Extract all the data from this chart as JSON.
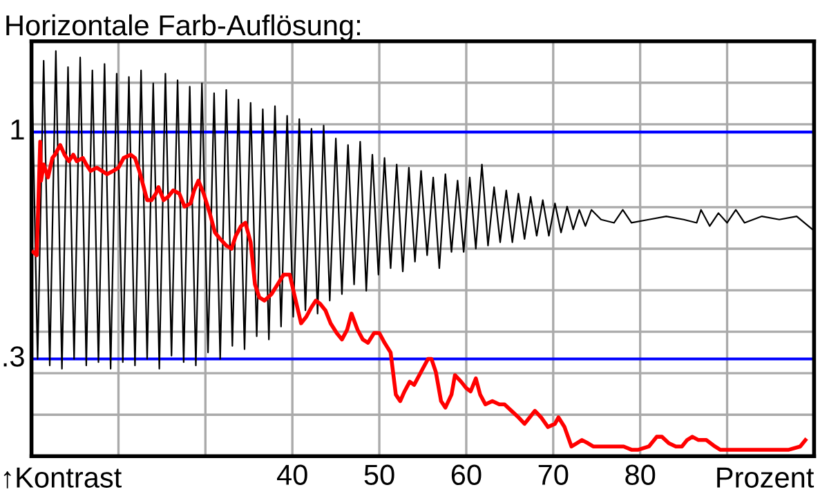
{
  "chart_data": {
    "type": "line",
    "title": "Horizontale Farb-Auflösung:",
    "xlabel": "Prozent",
    "annotations": [
      "↑Kontrast"
    ],
    "xlim": [
      10,
      100
    ],
    "xticks": [
      {
        "value": 20,
        "label": null
      },
      {
        "value": 30,
        "label": null
      },
      40,
      50,
      60,
      70,
      80,
      {
        "value": 90,
        "label": null
      }
    ],
    "ylim": [
      0,
      1.28
    ],
    "yticks": [
      {
        "value": 0.128,
        "label": null
      },
      {
        "value": 0.256,
        "label": null
      },
      {
        "value": 0.384,
        "label": null
      },
      {
        "value": 0.512,
        "label": null
      },
      {
        "value": 0.64,
        "label": null
      },
      {
        "value": 0.768,
        "label": null
      },
      {
        "value": 0.896,
        "label": null
      },
      {
        "value": 1.024,
        "label": null
      },
      {
        "value": 1.152,
        "label": null
      }
    ],
    "grid": true,
    "legend": false,
    "line_style": "solid",
    "marker": "none",
    "ref_lines": [
      {
        "axis": "y",
        "value": 1,
        "label": "1",
        "color": "#0000ff"
      },
      {
        "axis": "y",
        "value": 0.3,
        "label": ".3",
        "color": "#0000ff"
      }
    ],
    "series": [
      {
        "color": "#000000",
        "x": [
          10,
          10.7,
          11.4,
          12.1,
          12.8,
          13.5,
          14.2,
          14.9,
          15.6,
          16.3,
          17,
          17.7,
          18.4,
          19.1,
          19.8,
          20.5,
          21.2,
          21.9,
          22.6,
          23.3,
          24,
          24.7,
          25.4,
          26.1,
          26.8,
          27.5,
          28.2,
          28.9,
          29.6,
          30.3,
          31,
          31.7,
          32.4,
          33.1,
          33.8,
          34.5,
          35.2,
          35.9,
          36.6,
          37.3,
          38,
          38.7,
          39.4,
          40.1,
          40.8,
          41.5,
          42.2,
          42.9,
          43.6,
          44.3,
          45,
          45.7,
          46.4,
          47.1,
          47.8,
          48.5,
          49.2,
          49.9,
          50.6,
          51.3,
          52,
          52.7,
          53.4,
          54.1,
          54.8,
          55.5,
          56.2,
          56.9,
          57.6,
          58.3,
          59,
          59.7,
          60.4,
          61.1,
          61.8,
          62.5,
          63.2,
          63.9,
          64.6,
          65.3,
          66,
          66.7,
          67.4,
          68.1,
          68.8,
          69.5,
          70.2,
          70.9,
          71.6,
          72.3,
          73,
          73.7,
          74.4,
          75.5,
          77,
          78,
          79,
          81,
          83,
          85,
          86.5,
          87,
          88,
          89,
          90,
          91,
          92,
          94,
          96,
          98,
          99.8
        ],
        "values": [
          1.24,
          0.3,
          1.22,
          0.28,
          1.25,
          0.27,
          1.2,
          0.3,
          1.23,
          0.28,
          1.19,
          0.29,
          1.21,
          0.27,
          1.18,
          0.29,
          1.17,
          0.28,
          1.19,
          0.3,
          1.15,
          0.27,
          1.18,
          0.31,
          1.16,
          0.29,
          1.14,
          0.28,
          1.15,
          0.32,
          1.12,
          0.3,
          1.13,
          0.34,
          1.1,
          0.33,
          1.09,
          0.37,
          1.07,
          0.36,
          1.08,
          0.4,
          1.05,
          0.43,
          1.04,
          0.45,
          1.01,
          0.44,
          1.02,
          0.48,
          0.98,
          0.5,
          0.96,
          0.53,
          0.97,
          0.51,
          0.93,
          0.56,
          0.92,
          0.58,
          0.9,
          0.57,
          0.89,
          0.6,
          0.88,
          0.62,
          0.86,
          0.58,
          0.87,
          0.63,
          0.85,
          0.63,
          0.86,
          0.64,
          0.9,
          0.65,
          0.83,
          0.66,
          0.82,
          0.66,
          0.81,
          0.67,
          0.8,
          0.68,
          0.79,
          0.68,
          0.78,
          0.69,
          0.77,
          0.7,
          0.76,
          0.71,
          0.76,
          0.73,
          0.72,
          0.76,
          0.72,
          0.73,
          0.74,
          0.73,
          0.72,
          0.76,
          0.71,
          0.75,
          0.72,
          0.76,
          0.72,
          0.74,
          0.73,
          0.74,
          0.7
        ]
      },
      {
        "color": "#ff0000",
        "x": [
          10.2,
          10.6,
          11.0,
          11.1,
          11.4,
          11.9,
          12.4,
          12.7,
          13.3,
          13.8,
          14.3,
          14.8,
          15.2,
          15.9,
          16.3,
          16.8,
          17.5,
          18.1,
          18.7,
          19.4,
          20.0,
          20.6,
          21.4,
          21.9,
          22.4,
          22.9,
          23.3,
          23.8,
          24.3,
          24.6,
          25.2,
          25.7,
          26.3,
          27.0,
          27.6,
          28.3,
          28.7,
          29.2,
          29.8,
          30.5,
          31.1,
          31.7,
          32.4,
          33.0,
          33.5,
          34.1,
          34.6,
          35.2,
          35.7,
          36.2,
          36.8,
          37.6,
          38.3,
          39.0,
          39.7,
          40.3,
          41.0,
          41.6,
          42.2,
          42.7,
          43.2,
          43.8,
          44.4,
          45.1,
          45.7,
          46.3,
          46.8,
          47.5,
          48.1,
          48.7,
          49.4,
          50.0,
          50.6,
          51.3,
          51.9,
          52.4,
          52.9,
          53.5,
          54.0,
          54.8,
          55.6,
          56.0,
          56.5,
          57.1,
          57.6,
          58.3,
          58.7,
          59.4,
          60.0,
          60.5,
          61.1,
          61.6,
          62.2,
          63.0,
          63.8,
          64.4,
          65.2,
          66.0,
          66.7,
          67.3,
          67.9,
          68.6,
          69.4,
          70.2,
          70.6,
          71.3,
          72.1,
          72.7,
          73.3,
          74.0,
          74.6,
          75.6,
          76.8,
          78.1,
          79.0,
          79.8,
          81.0,
          81.9,
          82.5,
          83.3,
          84.1,
          84.8,
          85.4,
          86.0,
          86.7,
          87.6,
          88.6,
          89.2,
          90.2,
          91.1,
          92.1,
          93.0,
          95.2,
          97.1,
          98.4,
          99.0
        ],
        "values": [
          0.63,
          0.62,
          0.97,
          0.85,
          0.9,
          0.86,
          0.92,
          0.93,
          0.96,
          0.93,
          0.91,
          0.93,
          0.91,
          0.92,
          0.9,
          0.88,
          0.89,
          0.88,
          0.87,
          0.88,
          0.89,
          0.92,
          0.93,
          0.92,
          0.88,
          0.83,
          0.79,
          0.79,
          0.81,
          0.83,
          0.79,
          0.8,
          0.82,
          0.81,
          0.77,
          0.78,
          0.82,
          0.85,
          0.81,
          0.75,
          0.69,
          0.67,
          0.65,
          0.64,
          0.68,
          0.71,
          0.72,
          0.66,
          0.53,
          0.49,
          0.48,
          0.5,
          0.53,
          0.56,
          0.56,
          0.49,
          0.41,
          0.43,
          0.46,
          0.48,
          0.47,
          0.45,
          0.41,
          0.38,
          0.36,
          0.39,
          0.44,
          0.39,
          0.36,
          0.35,
          0.38,
          0.38,
          0.35,
          0.32,
          0.19,
          0.17,
          0.2,
          0.23,
          0.22,
          0.26,
          0.3,
          0.3,
          0.26,
          0.17,
          0.15,
          0.19,
          0.25,
          0.23,
          0.21,
          0.2,
          0.24,
          0.19,
          0.16,
          0.17,
          0.16,
          0.16,
          0.14,
          0.12,
          0.1,
          0.12,
          0.14,
          0.12,
          0.09,
          0.1,
          0.12,
          0.09,
          0.03,
          0.04,
          0.05,
          0.04,
          0.03,
          0.03,
          0.03,
          0.03,
          0.02,
          0.02,
          0.03,
          0.06,
          0.06,
          0.04,
          0.03,
          0.03,
          0.05,
          0.06,
          0.05,
          0.05,
          0.03,
          0.02,
          0.02,
          0.02,
          0.02,
          0.02,
          0.02,
          0.02,
          0.03,
          0.05
        ]
      }
    ]
  }
}
